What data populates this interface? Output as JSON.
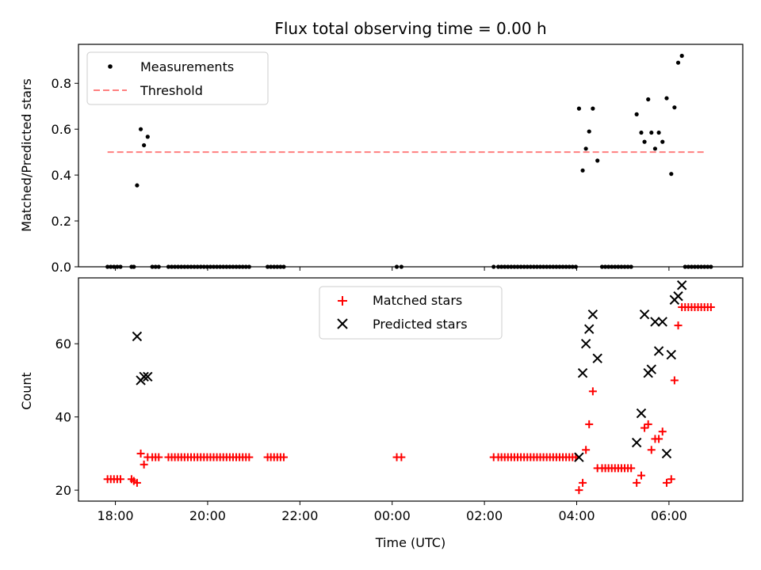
{
  "figure": {
    "title": "Flux total observing time = 0.00 h",
    "xlabel": "Time (UTC)"
  },
  "chart_data": [
    {
      "type": "scatter",
      "ylabel": "Matched/Predicted stars",
      "ylim": [
        0,
        0.97
      ],
      "yticks": [
        "0.0",
        "0.2",
        "0.4",
        "0.6",
        "0.8"
      ],
      "ytick_values": [
        0,
        0.2,
        0.4,
        0.6,
        0.8
      ],
      "xlim": [
        17.2,
        31.6
      ],
      "legend": {
        "placement": "upper left",
        "entries": [
          "Measurements",
          "Threshold"
        ]
      },
      "threshold": {
        "name": "Threshold",
        "y": 0.5,
        "x_range": [
          17.83,
          30.8
        ],
        "color": "#ff7f7f",
        "style": "dashed"
      },
      "series": [
        {
          "name": "Measurements",
          "marker": "dot",
          "color": "#000000",
          "points": [
            [
              17.83,
              0
            ],
            [
              17.9,
              0
            ],
            [
              17.97,
              0
            ],
            [
              18.04,
              0
            ],
            [
              18.11,
              0
            ],
            [
              18.35,
              0
            ],
            [
              18.4,
              0
            ],
            [
              18.47,
              0.355
            ],
            [
              18.55,
              0.6
            ],
            [
              18.62,
              0.53
            ],
            [
              18.7,
              0.567
            ],
            [
              18.8,
              0
            ],
            [
              18.87,
              0
            ],
            [
              18.94,
              0
            ],
            [
              19.15,
              0
            ],
            [
              19.22,
              0
            ],
            [
              19.29,
              0
            ],
            [
              19.36,
              0
            ],
            [
              19.43,
              0
            ],
            [
              19.5,
              0
            ],
            [
              19.57,
              0
            ],
            [
              19.64,
              0
            ],
            [
              19.71,
              0
            ],
            [
              19.78,
              0
            ],
            [
              19.85,
              0
            ],
            [
              19.92,
              0
            ],
            [
              19.99,
              0
            ],
            [
              20.06,
              0
            ],
            [
              20.13,
              0
            ],
            [
              20.2,
              0
            ],
            [
              20.27,
              0
            ],
            [
              20.34,
              0
            ],
            [
              20.41,
              0
            ],
            [
              20.48,
              0
            ],
            [
              20.55,
              0
            ],
            [
              20.62,
              0
            ],
            [
              20.69,
              0
            ],
            [
              20.76,
              0
            ],
            [
              20.83,
              0
            ],
            [
              20.9,
              0
            ],
            [
              21.3,
              0
            ],
            [
              21.37,
              0
            ],
            [
              21.44,
              0
            ],
            [
              21.51,
              0
            ],
            [
              21.58,
              0
            ],
            [
              21.65,
              0
            ],
            [
              24.1,
              0
            ],
            [
              24.2,
              0
            ],
            [
              26.2,
              0
            ],
            [
              26.3,
              0
            ],
            [
              26.37,
              0
            ],
            [
              26.44,
              0
            ],
            [
              26.51,
              0
            ],
            [
              26.58,
              0
            ],
            [
              26.65,
              0
            ],
            [
              26.72,
              0
            ],
            [
              26.79,
              0
            ],
            [
              26.86,
              0
            ],
            [
              26.93,
              0
            ],
            [
              27.0,
              0
            ],
            [
              27.07,
              0
            ],
            [
              27.14,
              0
            ],
            [
              27.21,
              0
            ],
            [
              27.28,
              0
            ],
            [
              27.35,
              0
            ],
            [
              27.42,
              0
            ],
            [
              27.49,
              0
            ],
            [
              27.56,
              0
            ],
            [
              27.63,
              0
            ],
            [
              27.7,
              0
            ],
            [
              27.77,
              0
            ],
            [
              27.84,
              0
            ],
            [
              27.91,
              0
            ],
            [
              27.98,
              0
            ],
            [
              28.05,
              0.69
            ],
            [
              28.13,
              0.42
            ],
            [
              28.2,
              0.515
            ],
            [
              28.27,
              0.59
            ],
            [
              28.35,
              0.69
            ],
            [
              28.45,
              0.463
            ],
            [
              28.55,
              0
            ],
            [
              28.62,
              0
            ],
            [
              28.69,
              0
            ],
            [
              28.76,
              0
            ],
            [
              28.83,
              0
            ],
            [
              28.9,
              0
            ],
            [
              28.97,
              0
            ],
            [
              29.04,
              0
            ],
            [
              29.11,
              0
            ],
            [
              29.18,
              0
            ],
            [
              29.3,
              0.665
            ],
            [
              29.4,
              0.585
            ],
            [
              29.47,
              0.545
            ],
            [
              29.55,
              0.73
            ],
            [
              29.62,
              0.585
            ],
            [
              29.7,
              0.515
            ],
            [
              29.78,
              0.585
            ],
            [
              29.86,
              0.545
            ],
            [
              29.95,
              0.735
            ],
            [
              30.05,
              0.405
            ],
            [
              30.12,
              0.695
            ],
            [
              30.2,
              0.89
            ],
            [
              30.28,
              0.92
            ],
            [
              30.35,
              0
            ],
            [
              30.42,
              0
            ],
            [
              30.49,
              0
            ],
            [
              30.56,
              0
            ],
            [
              30.63,
              0
            ],
            [
              30.7,
              0
            ],
            [
              30.77,
              0
            ],
            [
              30.84,
              0
            ],
            [
              30.91,
              0
            ]
          ]
        }
      ]
    },
    {
      "type": "scatter",
      "ylabel": "Count",
      "ylim": [
        17,
        78
      ],
      "yticks": [
        "20",
        "40",
        "60"
      ],
      "ytick_values": [
        20,
        40,
        60
      ],
      "xlim": [
        17.2,
        31.6
      ],
      "xticks": [
        "18:00",
        "20:00",
        "22:00",
        "00:00",
        "02:00",
        "04:00",
        "06:00"
      ],
      "xtick_values": [
        18,
        20,
        22,
        24,
        26,
        28,
        30
      ],
      "legend": {
        "placement": "upper center",
        "entries": [
          "Matched stars",
          "Predicted stars"
        ]
      },
      "series": [
        {
          "name": "Matched stars",
          "marker": "plus",
          "color": "#ff0000",
          "points": [
            [
              17.83,
              23
            ],
            [
              17.9,
              23
            ],
            [
              17.97,
              23
            ],
            [
              18.04,
              23
            ],
            [
              18.11,
              23
            ],
            [
              18.35,
              23
            ],
            [
              18.4,
              22.5
            ],
            [
              18.47,
              22
            ],
            [
              18.55,
              30
            ],
            [
              18.62,
              27
            ],
            [
              18.7,
              29
            ],
            [
              18.8,
              29
            ],
            [
              18.87,
              29
            ],
            [
              18.94,
              29
            ],
            [
              19.15,
              29
            ],
            [
              19.22,
              29
            ],
            [
              19.29,
              29
            ],
            [
              19.36,
              29
            ],
            [
              19.43,
              29
            ],
            [
              19.5,
              29
            ],
            [
              19.57,
              29
            ],
            [
              19.64,
              29
            ],
            [
              19.71,
              29
            ],
            [
              19.78,
              29
            ],
            [
              19.85,
              29
            ],
            [
              19.92,
              29
            ],
            [
              19.99,
              29
            ],
            [
              20.06,
              29
            ],
            [
              20.13,
              29
            ],
            [
              20.2,
              29
            ],
            [
              20.27,
              29
            ],
            [
              20.34,
              29
            ],
            [
              20.41,
              29
            ],
            [
              20.48,
              29
            ],
            [
              20.55,
              29
            ],
            [
              20.62,
              29
            ],
            [
              20.69,
              29
            ],
            [
              20.76,
              29
            ],
            [
              20.83,
              29
            ],
            [
              20.9,
              29
            ],
            [
              21.3,
              29
            ],
            [
              21.37,
              29
            ],
            [
              21.44,
              29
            ],
            [
              21.51,
              29
            ],
            [
              21.58,
              29
            ],
            [
              21.65,
              29
            ],
            [
              24.1,
              29
            ],
            [
              24.2,
              29
            ],
            [
              26.2,
              29
            ],
            [
              26.3,
              29
            ],
            [
              26.37,
              29
            ],
            [
              26.44,
              29
            ],
            [
              26.51,
              29
            ],
            [
              26.58,
              29
            ],
            [
              26.65,
              29
            ],
            [
              26.72,
              29
            ],
            [
              26.79,
              29
            ],
            [
              26.86,
              29
            ],
            [
              26.93,
              29
            ],
            [
              27.0,
              29
            ],
            [
              27.07,
              29
            ],
            [
              27.14,
              29
            ],
            [
              27.21,
              29
            ],
            [
              27.28,
              29
            ],
            [
              27.35,
              29
            ],
            [
              27.42,
              29
            ],
            [
              27.49,
              29
            ],
            [
              27.56,
              29
            ],
            [
              27.63,
              29
            ],
            [
              27.7,
              29
            ],
            [
              27.77,
              29
            ],
            [
              27.84,
              29
            ],
            [
              27.91,
              29
            ],
            [
              27.98,
              29
            ],
            [
              28.05,
              20
            ],
            [
              28.13,
              22
            ],
            [
              28.2,
              31
            ],
            [
              28.27,
              38
            ],
            [
              28.35,
              47
            ],
            [
              28.45,
              26
            ],
            [
              28.55,
              26
            ],
            [
              28.62,
              26
            ],
            [
              28.69,
              26
            ],
            [
              28.76,
              26
            ],
            [
              28.83,
              26
            ],
            [
              28.9,
              26
            ],
            [
              28.97,
              26
            ],
            [
              29.04,
              26
            ],
            [
              29.11,
              26
            ],
            [
              29.18,
              26
            ],
            [
              29.3,
              22
            ],
            [
              29.4,
              24
            ],
            [
              29.47,
              37
            ],
            [
              29.55,
              38
            ],
            [
              29.62,
              31
            ],
            [
              29.7,
              34
            ],
            [
              29.78,
              34
            ],
            [
              29.86,
              36
            ],
            [
              29.95,
              22
            ],
            [
              30.05,
              23
            ],
            [
              30.12,
              50
            ],
            [
              30.2,
              65
            ],
            [
              30.28,
              70
            ],
            [
              30.35,
              70
            ],
            [
              30.42,
              70
            ],
            [
              30.49,
              70
            ],
            [
              30.56,
              70
            ],
            [
              30.63,
              70
            ],
            [
              30.7,
              70
            ],
            [
              30.77,
              70
            ],
            [
              30.84,
              70
            ],
            [
              30.91,
              70
            ]
          ]
        },
        {
          "name": "Predicted stars",
          "marker": "x",
          "color": "#000000",
          "points": [
            [
              18.47,
              62
            ],
            [
              18.55,
              50
            ],
            [
              18.62,
              51
            ],
            [
              18.7,
              51
            ],
            [
              28.05,
              29
            ],
            [
              28.13,
              52
            ],
            [
              28.2,
              60
            ],
            [
              28.27,
              64
            ],
            [
              28.35,
              68
            ],
            [
              28.45,
              56
            ],
            [
              29.3,
              33
            ],
            [
              29.4,
              41
            ],
            [
              29.47,
              68
            ],
            [
              29.55,
              52
            ],
            [
              29.62,
              53
            ],
            [
              29.7,
              66
            ],
            [
              29.78,
              58
            ],
            [
              29.86,
              66
            ],
            [
              29.95,
              30
            ],
            [
              30.05,
              57
            ],
            [
              30.12,
              72
            ],
            [
              30.2,
              73
            ],
            [
              30.28,
              76
            ]
          ]
        }
      ]
    }
  ]
}
